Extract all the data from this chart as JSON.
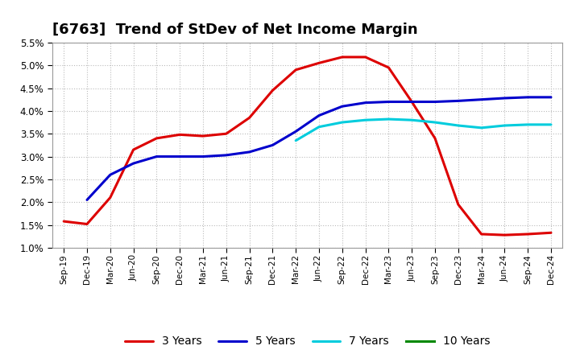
{
  "title": "[6763]  Trend of StDev of Net Income Margin",
  "title_fontsize": 13,
  "ylim": [
    0.01,
    0.055
  ],
  "yticks": [
    0.01,
    0.015,
    0.02,
    0.025,
    0.03,
    0.035,
    0.04,
    0.045,
    0.05,
    0.055
  ],
  "background_color": "#ffffff",
  "grid_color": "#bbbbbb",
  "xtick_labels": [
    "Sep-19",
    "Dec-19",
    "Mar-20",
    "Jun-20",
    "Sep-20",
    "Dec-20",
    "Mar-21",
    "Jun-21",
    "Sep-21",
    "Dec-21",
    "Mar-22",
    "Jun-22",
    "Sep-22",
    "Dec-22",
    "Mar-23",
    "Jun-23",
    "Sep-23",
    "Dec-23",
    "Mar-24",
    "Jun-24",
    "Sep-24",
    "Dec-24"
  ],
  "series_3y": {
    "color": "#dd0000",
    "linewidth": 2.2,
    "x": [
      0,
      1,
      2,
      3,
      4,
      5,
      6,
      7,
      8,
      9,
      10,
      11,
      12,
      13,
      14,
      15,
      16,
      17,
      18,
      19,
      20,
      21
    ],
    "y": [
      0.0158,
      0.0152,
      0.021,
      0.0315,
      0.034,
      0.0348,
      0.0345,
      0.035,
      0.0385,
      0.0445,
      0.049,
      0.0505,
      0.0518,
      0.0518,
      0.0495,
      0.042,
      0.034,
      0.0195,
      0.013,
      0.0128,
      0.013,
      0.0133
    ],
    "label": "3 Years"
  },
  "series_5y": {
    "color": "#0000cc",
    "linewidth": 2.2,
    "x": [
      1,
      2,
      3,
      4,
      5,
      6,
      7,
      8,
      9,
      10,
      11,
      12,
      13,
      14,
      15,
      16,
      17,
      18,
      19,
      20,
      21
    ],
    "y": [
      0.0205,
      0.026,
      0.0285,
      0.03,
      0.03,
      0.03,
      0.0303,
      0.031,
      0.0325,
      0.0355,
      0.039,
      0.041,
      0.0418,
      0.042,
      0.042,
      0.042,
      0.0422,
      0.0425,
      0.0428,
      0.043,
      0.043
    ],
    "label": "5 Years"
  },
  "series_7y": {
    "color": "#00ccdd",
    "linewidth": 2.2,
    "x": [
      10,
      11,
      12,
      13,
      14,
      15,
      16,
      17,
      18,
      19,
      20,
      21
    ],
    "y": [
      0.0335,
      0.0365,
      0.0375,
      0.038,
      0.0382,
      0.038,
      0.0375,
      0.0368,
      0.0363,
      0.0368,
      0.037,
      0.037
    ],
    "label": "7 Years"
  },
  "series_10y": {
    "color": "#008800",
    "linewidth": 2.2,
    "x": [],
    "y": [],
    "label": "10 Years"
  },
  "legend_fontsize": 10,
  "tick_fontsize": 7.5,
  "ytick_fontsize": 8.5
}
